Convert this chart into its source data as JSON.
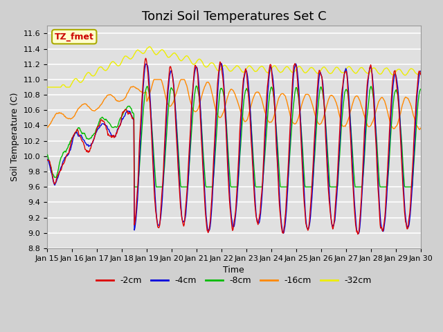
{
  "title": "Tonzi Soil Temperatures Set C",
  "xlabel": "Time",
  "ylabel": "Soil Temperature (C)",
  "ylim": [
    8.8,
    11.7
  ],
  "xlim": [
    0,
    15
  ],
  "xtick_labels": [
    "Jan 15",
    "Jan 16",
    "Jan 17",
    "Jan 18",
    "Jan 19",
    "Jan 20",
    "Jan 21",
    "Jan 22",
    "Jan 23",
    "Jan 24",
    "Jan 25",
    "Jan 26",
    "Jan 27",
    "Jan 28",
    "Jan 29",
    "Jan 30"
  ],
  "series": {
    "-2cm": {
      "color": "#dd0000",
      "lw": 1.0
    },
    "-4cm": {
      "color": "#0000dd",
      "lw": 1.0
    },
    "-8cm": {
      "color": "#00bb00",
      "lw": 1.0
    },
    "-16cm": {
      "color": "#ff8800",
      "lw": 1.0
    },
    "-32cm": {
      "color": "#eeee00",
      "lw": 1.0
    }
  },
  "annotation_text": "TZ_fmet",
  "annotation_color": "#cc0000",
  "annotation_bg": "#ffffcc",
  "annotation_edge": "#aaaa00",
  "fig_bg": "#d0d0d0",
  "plot_bg": "#e0e0e0",
  "grid_color": "#ffffff",
  "title_fontsize": 13,
  "axis_fontsize": 9,
  "tick_fontsize": 8,
  "legend_fontsize": 9
}
